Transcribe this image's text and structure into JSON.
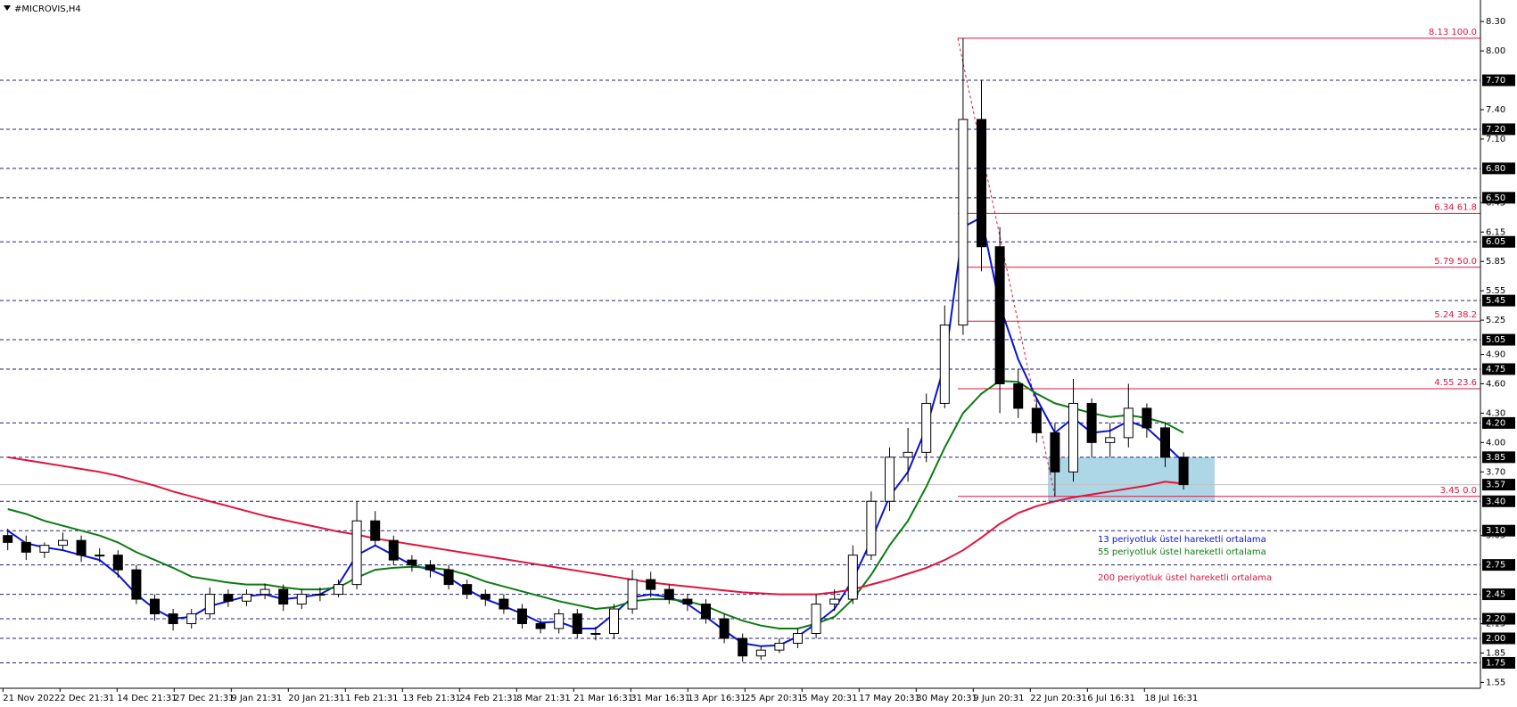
{
  "chart_data": {
    "type": "candlestick",
    "title": "#MICROVIS,H4",
    "x_labels": [
      "21 Nov 2022",
      "2 Dec 21:31",
      "14 Dec 21:31",
      "27 Dec 21:31",
      "9 Jan 21:31",
      "20 Jan 21:31",
      "1 Feb 21:31",
      "13 Feb 21:31",
      "24 Feb 21:31",
      "8 Mar 21:31",
      "21 Mar 16:31",
      "31 Mar 16:31",
      "13 Apr 16:31",
      "25 Apr 20:31",
      "5 May 20:31",
      "17 May 20:31",
      "30 May 20:31",
      "9 Jun 20:31",
      "22 Jun 20:31",
      "6 Jul 16:31",
      "18 Jul 16:31"
    ],
    "ohlc": {
      "open": [
        3.05,
        2.98,
        2.88,
        2.95,
        3.0,
        2.85,
        2.85,
        2.7,
        2.4,
        2.25,
        2.15,
        2.25,
        2.45,
        2.38,
        2.45,
        2.5,
        2.35,
        2.45,
        2.45,
        2.55,
        3.2,
        3.0,
        2.8,
        2.75,
        2.7,
        2.55,
        2.45,
        2.4,
        2.3,
        2.15,
        2.1,
        2.25,
        2.05,
        2.05,
        2.3,
        2.6,
        2.5,
        2.4,
        2.35,
        2.2,
        2.0,
        1.82,
        1.88,
        1.95,
        2.05,
        2.35,
        2.4,
        2.85,
        3.4,
        3.85,
        3.9,
        4.4,
        5.2,
        7.3,
        6.0,
        4.6,
        4.35,
        4.1,
        3.7,
        4.4,
        4.0,
        4.05,
        4.35,
        4.15,
        3.85
      ],
      "high": [
        3.12,
        3.05,
        2.98,
        3.08,
        3.05,
        2.92,
        2.9,
        2.75,
        2.45,
        2.3,
        2.3,
        2.52,
        2.5,
        2.5,
        2.56,
        2.55,
        2.5,
        2.52,
        2.6,
        3.4,
        3.3,
        3.05,
        2.85,
        2.8,
        2.75,
        2.6,
        2.5,
        2.45,
        2.35,
        2.2,
        2.3,
        2.3,
        2.12,
        2.35,
        2.7,
        2.68,
        2.55,
        2.45,
        2.4,
        2.25,
        2.05,
        1.92,
        2.0,
        2.1,
        2.45,
        2.5,
        2.95,
        3.5,
        3.95,
        4.15,
        4.5,
        5.4,
        8.13,
        7.7,
        6.2,
        4.75,
        4.45,
        4.2,
        4.65,
        4.45,
        4.2,
        4.6,
        4.4,
        4.2,
        3.9
      ],
      "low": [
        2.9,
        2.8,
        2.82,
        2.9,
        2.78,
        2.78,
        2.62,
        2.35,
        2.18,
        2.08,
        2.1,
        2.2,
        2.32,
        2.33,
        2.4,
        2.28,
        2.3,
        2.38,
        2.42,
        2.5,
        2.95,
        2.75,
        2.68,
        2.62,
        2.5,
        2.4,
        2.33,
        2.25,
        2.1,
        2.05,
        2.05,
        2.0,
        1.98,
        2.0,
        2.25,
        2.42,
        2.35,
        2.28,
        2.15,
        1.95,
        1.76,
        1.78,
        1.85,
        1.9,
        2.0,
        2.28,
        2.35,
        2.8,
        3.3,
        3.6,
        3.8,
        4.35,
        5.1,
        5.75,
        4.3,
        4.25,
        4.0,
        3.45,
        3.6,
        3.85,
        3.85,
        3.95,
        4.05,
        3.75,
        3.52
      ],
      "close": [
        2.98,
        2.88,
        2.95,
        3.0,
        2.85,
        2.85,
        2.7,
        2.4,
        2.25,
        2.15,
        2.25,
        2.45,
        2.38,
        2.45,
        2.5,
        2.35,
        2.45,
        2.45,
        2.55,
        3.2,
        3.0,
        2.8,
        2.75,
        2.7,
        2.55,
        2.45,
        2.4,
        2.3,
        2.15,
        2.1,
        2.25,
        2.05,
        2.05,
        2.3,
        2.6,
        2.5,
        2.4,
        2.35,
        2.2,
        2.0,
        1.82,
        1.88,
        1.95,
        2.05,
        2.35,
        2.4,
        2.85,
        3.4,
        3.85,
        3.9,
        4.4,
        5.2,
        7.3,
        6.0,
        4.6,
        4.35,
        4.1,
        3.7,
        4.4,
        4.0,
        4.05,
        4.35,
        4.15,
        3.85,
        3.57
      ]
    },
    "series": [
      {
        "name": "13 periyotluk üstel hareketli ortalama",
        "color": "#0a12d8",
        "values": [
          3.1,
          2.97,
          2.93,
          2.9,
          2.85,
          2.8,
          2.65,
          2.45,
          2.3,
          2.2,
          2.22,
          2.33,
          2.38,
          2.43,
          2.45,
          2.4,
          2.42,
          2.45,
          2.55,
          2.85,
          2.95,
          2.85,
          2.75,
          2.7,
          2.62,
          2.5,
          2.4,
          2.33,
          2.25,
          2.16,
          2.17,
          2.1,
          2.1,
          2.25,
          2.42,
          2.45,
          2.42,
          2.35,
          2.22,
          2.08,
          1.95,
          1.92,
          1.93,
          2.02,
          2.15,
          2.3,
          2.6,
          3.0,
          3.45,
          3.7,
          4.15,
          4.8,
          6.2,
          6.3,
          5.4,
          4.85,
          4.45,
          4.1,
          4.25,
          4.1,
          4.12,
          4.22,
          4.15,
          3.98,
          3.8
        ]
      },
      {
        "name": "55 periyotluk üstel hareketli ortalama",
        "color": "#0f7a12",
        "values": [
          3.32,
          3.27,
          3.2,
          3.15,
          3.1,
          3.05,
          2.98,
          2.88,
          2.8,
          2.72,
          2.63,
          2.6,
          2.57,
          2.55,
          2.55,
          2.52,
          2.5,
          2.5,
          2.52,
          2.62,
          2.7,
          2.72,
          2.73,
          2.72,
          2.7,
          2.65,
          2.58,
          2.53,
          2.48,
          2.43,
          2.38,
          2.34,
          2.3,
          2.32,
          2.38,
          2.4,
          2.4,
          2.38,
          2.33,
          2.25,
          2.18,
          2.13,
          2.1,
          2.1,
          2.15,
          2.22,
          2.4,
          2.65,
          2.95,
          3.2,
          3.55,
          3.95,
          4.3,
          4.5,
          4.63,
          4.62,
          4.5,
          4.4,
          4.35,
          4.3,
          4.26,
          4.28,
          4.25,
          4.2,
          4.1
        ]
      },
      {
        "name": "200 periyotluk üstel hareketli ortalama",
        "color": "#e0143c",
        "values": [
          3.85,
          3.82,
          3.79,
          3.76,
          3.73,
          3.7,
          3.66,
          3.61,
          3.56,
          3.5,
          3.45,
          3.4,
          3.35,
          3.3,
          3.25,
          3.21,
          3.17,
          3.13,
          3.09,
          3.06,
          3.02,
          2.99,
          2.96,
          2.93,
          2.9,
          2.87,
          2.84,
          2.81,
          2.78,
          2.75,
          2.72,
          2.69,
          2.66,
          2.63,
          2.6,
          2.57,
          2.55,
          2.53,
          2.51,
          2.49,
          2.47,
          2.46,
          2.45,
          2.45,
          2.45,
          2.47,
          2.5,
          2.55,
          2.6,
          2.66,
          2.72,
          2.8,
          2.9,
          3.03,
          3.17,
          3.28,
          3.35,
          3.4,
          3.44,
          3.47,
          3.5,
          3.53,
          3.56,
          3.6,
          3.58
        ]
      }
    ],
    "ylim": [
      1.49,
      8.52
    ],
    "yticks": [
      {
        "value": 8.3,
        "label": "8.30"
      },
      {
        "value": 8.0,
        "label": "8.00"
      },
      {
        "value": 7.4,
        "label": "7.40"
      },
      {
        "value": 7.1,
        "label": "7.10"
      },
      {
        "value": 6.45,
        "label": "6.45"
      },
      {
        "value": 6.15,
        "label": "6.15"
      },
      {
        "value": 5.85,
        "label": "5.85"
      },
      {
        "value": 5.55,
        "label": "5.55"
      },
      {
        "value": 5.25,
        "label": "5.25"
      },
      {
        "value": 4.9,
        "label": "4.90"
      },
      {
        "value": 4.6,
        "label": "4.60"
      },
      {
        "value": 4.3,
        "label": "4.30"
      },
      {
        "value": 4.0,
        "label": "4.00"
      },
      {
        "value": 3.7,
        "label": "3.70"
      },
      {
        "value": 3.05,
        "label": "3.05"
      },
      {
        "value": 2.15,
        "label": "2.15"
      },
      {
        "value": 1.85,
        "label": "1.85"
      },
      {
        "value": 1.55,
        "label": "1.55"
      }
    ],
    "levels": [
      {
        "value": 7.7,
        "label": "7.70"
      },
      {
        "value": 7.2,
        "label": "7.20"
      },
      {
        "value": 6.8,
        "label": "6.80"
      },
      {
        "value": 6.5,
        "label": "6.50"
      },
      {
        "value": 6.05,
        "label": "6.05"
      },
      {
        "value": 5.45,
        "label": "5.45"
      },
      {
        "value": 5.05,
        "label": "5.05"
      },
      {
        "value": 4.75,
        "label": "4.75"
      },
      {
        "value": 4.2,
        "label": "4.20"
      },
      {
        "value": 3.85,
        "label": "3.85"
      },
      {
        "value": 3.4,
        "label": "3.40"
      },
      {
        "value": 3.1,
        "label": "3.10"
      },
      {
        "value": 2.75,
        "label": "2.75"
      },
      {
        "value": 2.45,
        "label": "2.45"
      },
      {
        "value": 2.2,
        "label": "2.20"
      },
      {
        "value": 2.0,
        "label": "2.00"
      },
      {
        "value": 1.75,
        "label": "1.75"
      }
    ],
    "current_price": {
      "value": 3.57,
      "label": "3.57"
    },
    "fib": [
      {
        "value": 8.13,
        "label": "8.13 100.0"
      },
      {
        "value": 6.34,
        "label": "6.34 61.8"
      },
      {
        "value": 5.79,
        "label": "5.79 50.0"
      },
      {
        "value": 5.24,
        "label": "5.24 38.2"
      },
      {
        "value": 4.55,
        "label": "4.55 23.6"
      },
      {
        "value": 3.45,
        "label": "3.45 0.0"
      }
    ],
    "fib_color": "#e0143c",
    "highlight_zone": [
      3.4,
      3.85
    ]
  }
}
